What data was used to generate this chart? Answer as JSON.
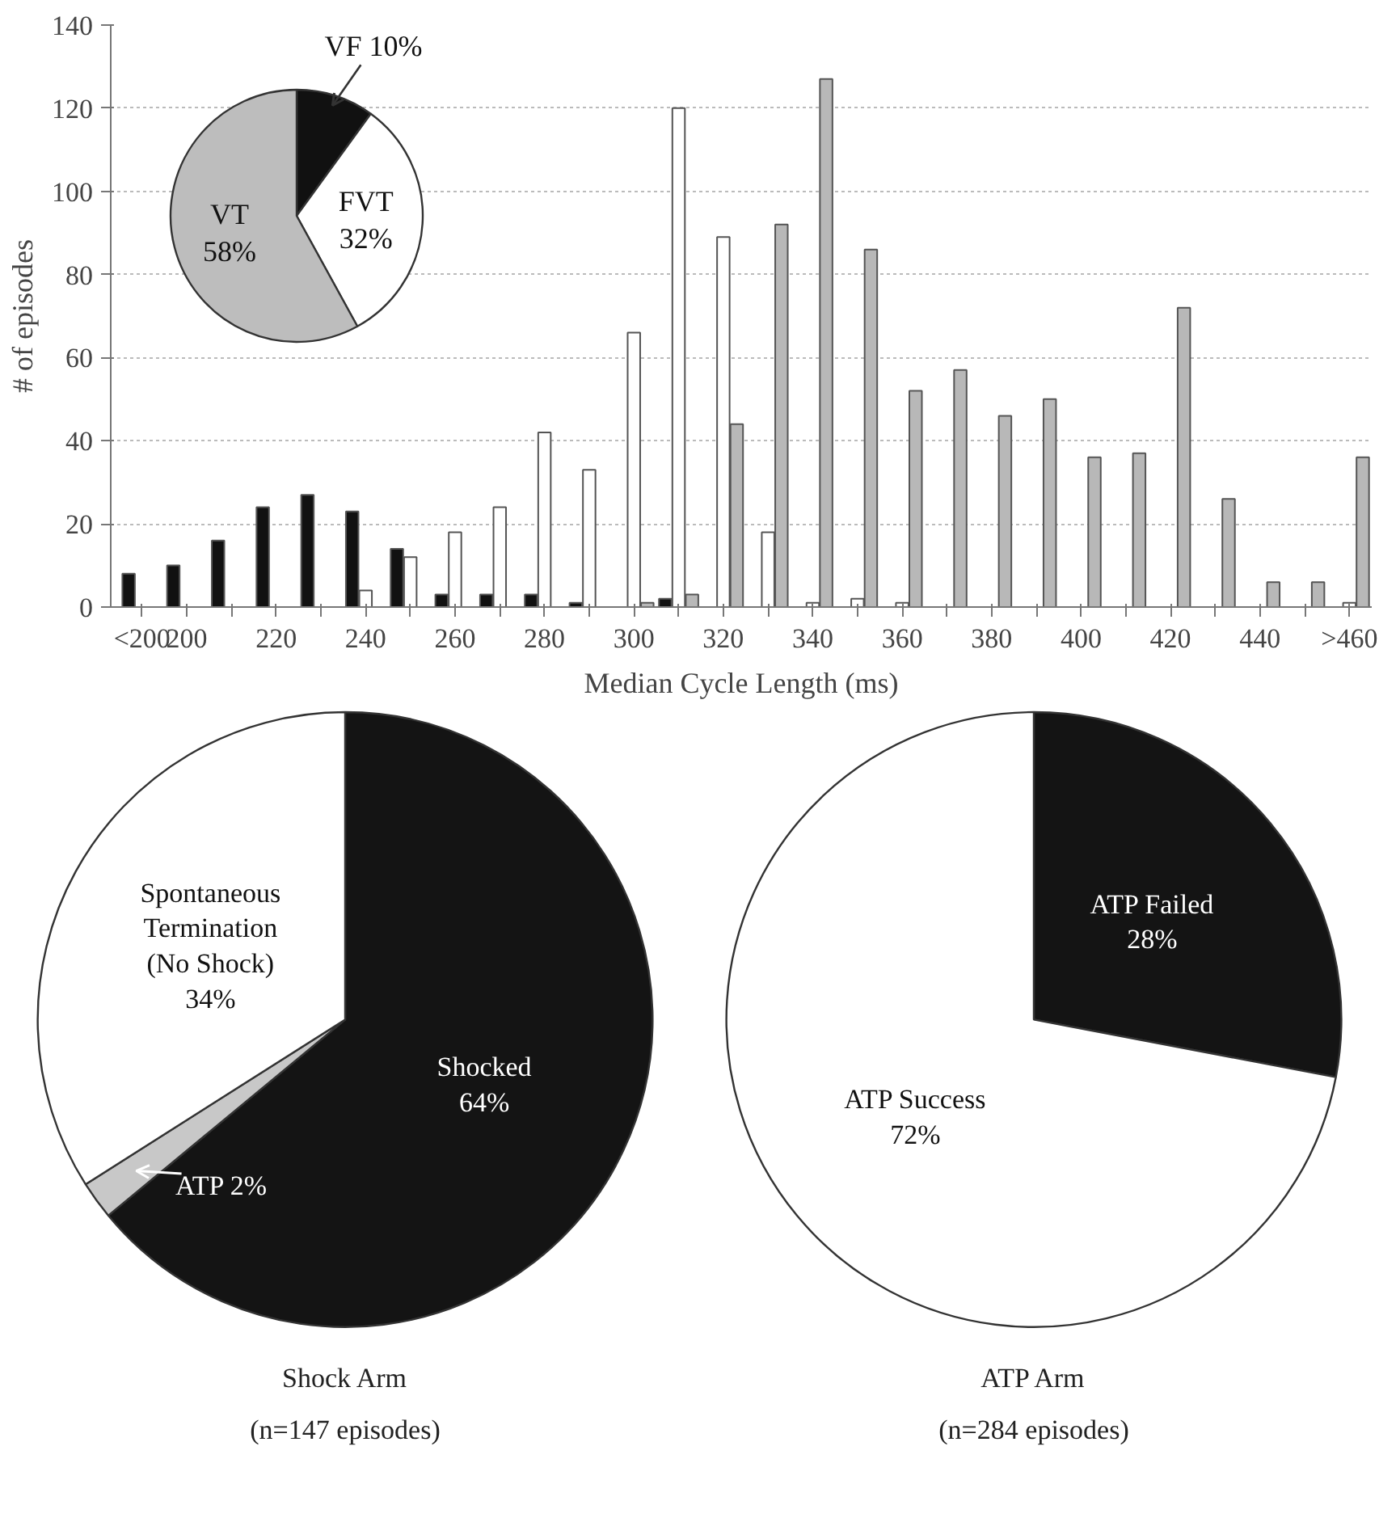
{
  "chart_data": [
    {
      "type": "bar",
      "xlabel": "Median Cycle Length (ms)",
      "ylabel": "# of episodes",
      "categories": [
        "<200",
        "200",
        null,
        "220",
        null,
        "240",
        null,
        "260",
        null,
        "280",
        null,
        "300",
        null,
        "320",
        null,
        "340",
        null,
        "360",
        null,
        "380",
        null,
        "400",
        null,
        "420",
        null,
        "440",
        null,
        ">460"
      ],
      "series": [
        {
          "color": "#111111",
          "values": [
            8,
            10,
            16,
            24,
            27,
            23,
            14,
            3,
            3,
            3,
            1,
            null,
            2,
            null,
            null,
            null,
            null,
            null,
            null,
            null,
            null,
            null,
            null,
            null,
            null,
            null,
            null,
            null
          ]
        },
        {
          "color": "#ffffff",
          "values": [
            null,
            null,
            null,
            null,
            null,
            4,
            12,
            18,
            24,
            42,
            33,
            66,
            120,
            89,
            18,
            1,
            2,
            1,
            null,
            null,
            null,
            null,
            null,
            null,
            null,
            null,
            null,
            1
          ]
        },
        {
          "color": "#b8b8b8",
          "values": [
            null,
            null,
            null,
            null,
            null,
            null,
            null,
            null,
            null,
            null,
            null,
            1,
            3,
            44,
            92,
            127,
            86,
            52,
            57,
            46,
            50,
            36,
            37,
            72,
            26,
            6,
            6,
            36
          ]
        }
      ],
      "ylim": [
        0,
        140
      ],
      "yticks": [
        0,
        20,
        40,
        60,
        80,
        100,
        120,
        140
      ],
      "grid": "y"
    },
    {
      "type": "pie",
      "title": "Shock Arm",
      "subtitle": "(n=147 episodes)",
      "categories": [
        "Shocked",
        "ATP",
        "Spontaneous\nTermination\n(No Shock)"
      ],
      "values": [
        64,
        2,
        34
      ],
      "colors": [
        "#141414",
        "#c8c8c8",
        "#ffffff"
      ],
      "value_labels": [
        "64%",
        "2%",
        "34%"
      ]
    },
    {
      "type": "pie",
      "title": "ATP Arm",
      "subtitle": "(n=284 episodes)",
      "categories": [
        "ATP Failed",
        "ATP Success"
      ],
      "values": [
        28,
        72
      ],
      "colors": [
        "#141414",
        "#ffffff"
      ],
      "value_labels": [
        "28%",
        "72%"
      ]
    },
    {
      "type": "pie",
      "categories": [
        "VF",
        "FVT",
        "VT"
      ],
      "values": [
        10,
        32,
        58
      ],
      "colors": [
        "#111111",
        "#ffffff",
        "#bdbdbd"
      ],
      "value_labels": [
        "10%",
        "32%",
        "58%"
      ]
    }
  ]
}
